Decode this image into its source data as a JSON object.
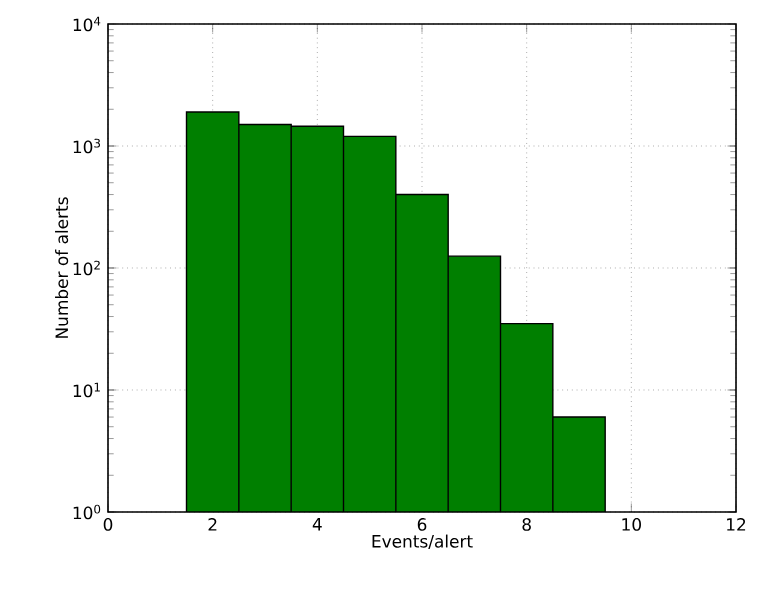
{
  "chart_data": {
    "type": "histogram",
    "xlabel": "Events/alert",
    "ylabel": "Number of alerts",
    "bins": [
      1.5,
      2.5,
      3.5,
      4.5,
      5.5,
      6.5,
      7.5,
      8.5,
      9.5
    ],
    "values": [
      1900,
      1500,
      1450,
      1200,
      400,
      125,
      35,
      6
    ],
    "color": "#007f00",
    "log": "y",
    "grid": true,
    "xlim": [
      0,
      12
    ],
    "xticks": [
      0,
      2,
      4,
      6,
      8,
      10,
      12
    ],
    "ylim": [
      1,
      10000
    ],
    "yticks": [
      {
        "value": 1,
        "label": "10$^{0}$"
      },
      {
        "value": 10,
        "label": "10$^{1}$"
      },
      {
        "value": 100,
        "label": "10$^{2}$"
      },
      {
        "value": 1000,
        "label": "10$^{3}$"
      },
      {
        "value": 10000,
        "label": "10$^{4}$"
      }
    ]
  }
}
